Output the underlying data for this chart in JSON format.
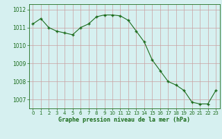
{
  "x": [
    0,
    1,
    2,
    3,
    4,
    5,
    6,
    7,
    8,
    9,
    10,
    11,
    12,
    13,
    14,
    15,
    16,
    17,
    18,
    19,
    20,
    21,
    22,
    23
  ],
  "y": [
    1011.2,
    1011.5,
    1011.0,
    1010.8,
    1010.7,
    1010.6,
    1011.0,
    1011.2,
    1011.6,
    1011.7,
    1011.7,
    1011.65,
    1011.4,
    1010.8,
    1010.2,
    1009.2,
    1008.6,
    1008.0,
    1007.8,
    1007.5,
    1006.85,
    1006.75,
    1006.75,
    1007.5
  ],
  "line_color": "#1a6b1a",
  "marker_color": "#1a6b1a",
  "bg_color": "#d6f0f0",
  "grid_color": "#c8a0a0",
  "xlabel": "Graphe pression niveau de la mer (hPa)",
  "xlabel_color": "#1a6b1a",
  "tick_color": "#1a6b1a",
  "ylim_min": 1006.5,
  "ylim_max": 1012.3,
  "yticks": [
    1007,
    1008,
    1009,
    1010,
    1011,
    1012
  ],
  "xticks": [
    0,
    1,
    2,
    3,
    4,
    5,
    6,
    7,
    8,
    9,
    10,
    11,
    12,
    13,
    14,
    15,
    16,
    17,
    18,
    19,
    20,
    21,
    22,
    23
  ],
  "figsize": [
    3.2,
    2.0
  ],
  "dpi": 100
}
